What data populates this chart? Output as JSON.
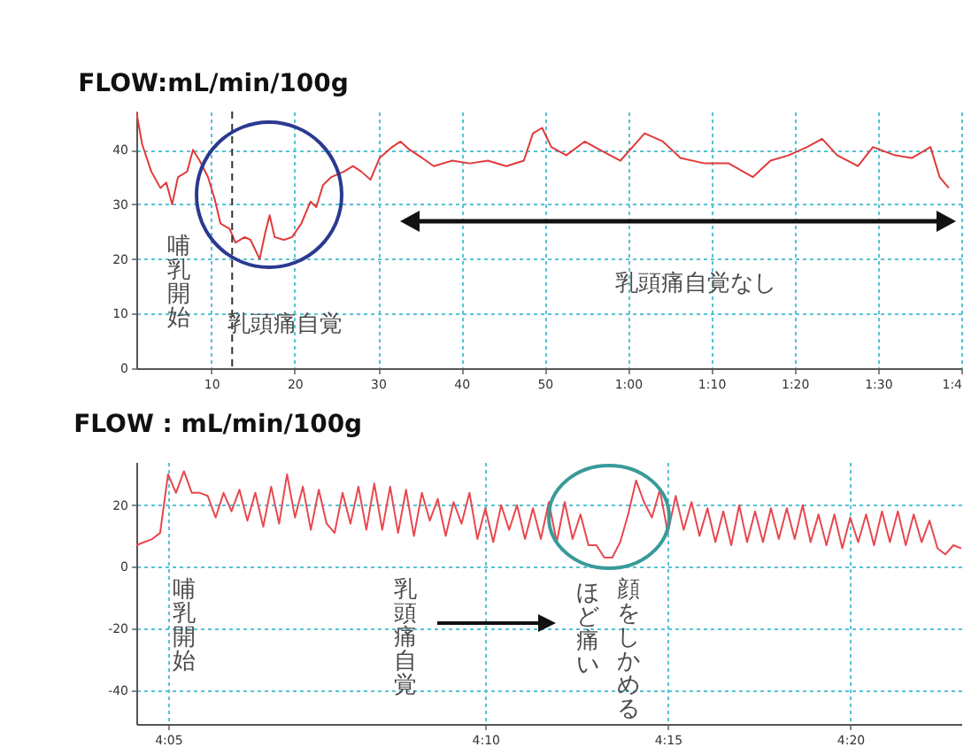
{
  "chart_data": [
    {
      "type": "line",
      "title": "FLOW:mL/min/100g",
      "x": [
        1,
        1.7,
        2.8,
        3.9,
        4.6,
        5.3,
        6,
        7.1,
        7.8,
        8.6,
        9.6,
        10.4,
        11.1,
        12.2,
        12.9,
        14,
        14.7,
        15.8,
        16.5,
        17,
        17.6,
        18.7,
        19.7,
        20.8,
        21.9,
        22.6,
        23.4,
        24.4,
        25.9,
        27,
        28,
        29.1,
        30.2,
        31.7,
        32.7,
        33.8,
        35.3,
        36.7,
        38.9,
        41,
        43.2,
        45.4,
        47.5,
        48.6,
        49.7,
        50.8,
        52.6,
        54.8,
        56.6,
        59.1,
        62,
        64.2,
        66.3,
        69.2,
        72.1,
        75,
        77.1,
        79.3,
        81.5,
        83.3,
        85.1,
        87.6,
        89.4,
        92,
        94.1,
        96.3,
        97.4,
        98.5
      ],
      "series": [
        {
          "color": "#e03a3a",
          "values": [
            47,
            41,
            36,
            33,
            34,
            30,
            35,
            36,
            40,
            38,
            35,
            31,
            26.5,
            25.5,
            23,
            24,
            23.5,
            20,
            25,
            28,
            24,
            23.5,
            24,
            26.5,
            30.5,
            29.5,
            33.5,
            35,
            36,
            37,
            36,
            34.5,
            38.5,
            40.5,
            41.5,
            40,
            38.5,
            37,
            38,
            37.5,
            38,
            37,
            38,
            43,
            44,
            40.5,
            39,
            41.5,
            40,
            38,
            43,
            41.5,
            38.5,
            37.5,
            37.5,
            35,
            38,
            39,
            40.5,
            42,
            39,
            37,
            40.5,
            39,
            38.5,
            40.5,
            35,
            33
          ]
        }
      ],
      "xlim": [
        1,
        100
      ],
      "ylim": [
        0,
        47
      ],
      "yticks": [
        0,
        10,
        20,
        30,
        40
      ],
      "xticks": [
        10,
        20,
        30,
        40,
        50,
        {
          "value": 60,
          "label": "1:00"
        },
        {
          "value": 70,
          "label": "1:10"
        },
        {
          "value": 80,
          "label": "1:20"
        },
        {
          "value": 90,
          "label": "1:30"
        },
        {
          "value": 100,
          "label": "1:4"
        }
      ],
      "grid": true,
      "ref_lines": [
        {
          "axis": "x",
          "value": 12.5,
          "color": "#333333",
          "line_style": "dashed"
        }
      ],
      "annotations": [
        "哺乳開始",
        "乳頭痛自覚",
        "乳頭痛自覚なし"
      ]
    },
    {
      "type": "line",
      "title": "FLOW : mL/min/100g",
      "categories": [
        null,
        null,
        null,
        null,
        "4:05",
        null,
        null,
        null,
        null,
        null,
        null,
        null,
        null,
        null,
        null,
        null,
        null,
        null,
        null,
        null,
        null,
        null,
        null,
        null,
        null,
        null,
        null,
        null,
        null,
        null,
        null,
        null,
        null,
        null,
        null,
        null,
        null,
        null,
        null,
        null,
        null,
        null,
        null,
        null,
        "4:10",
        null,
        null,
        null,
        null,
        null,
        null,
        null,
        null,
        null,
        null,
        null,
        null,
        null,
        null,
        null,
        null,
        null,
        null,
        null,
        null,
        null,
        null,
        "4:15",
        null,
        null,
        null,
        null,
        null,
        null,
        null,
        null,
        null,
        null,
        null,
        null,
        null,
        null,
        null,
        null,
        null,
        null,
        null,
        null,
        null,
        null,
        "4:20",
        null,
        null,
        null,
        null,
        null,
        null,
        null,
        null,
        null,
        null,
        null,
        null,
        null,
        null
      ],
      "series": [
        {
          "color": "#e8474f",
          "values": [
            7,
            8,
            9,
            11,
            30,
            24,
            31,
            24,
            24,
            23,
            16,
            24,
            18,
            25,
            15,
            24,
            13,
            26,
            14,
            30,
            16,
            26,
            12,
            25,
            14,
            11,
            24,
            14,
            26,
            12,
            27,
            12,
            26,
            11,
            25,
            10,
            24,
            15,
            22,
            10,
            21,
            14,
            24,
            9,
            19,
            8,
            20,
            12,
            20,
            9,
            19,
            9,
            21,
            8,
            21,
            9,
            17,
            7,
            7,
            3,
            3,
            8,
            17,
            28,
            21,
            16,
            25,
            11,
            23,
            12,
            21,
            10,
            19,
            8,
            18,
            7,
            20,
            8,
            18,
            8,
            19,
            9,
            19,
            9,
            20,
            8,
            17,
            7,
            17,
            6,
            16,
            8,
            17,
            7,
            18,
            8,
            18,
            7,
            17,
            8,
            15,
            6,
            4,
            7,
            6
          ]
        }
      ],
      "ylim": [
        -51,
        34
      ],
      "yticks": [
        -40,
        -20,
        0,
        20
      ],
      "grid": true,
      "annotations": [
        "哺乳開始",
        "乳頭痛自覚",
        "ほど痛い",
        "顔をしかめる"
      ]
    }
  ]
}
